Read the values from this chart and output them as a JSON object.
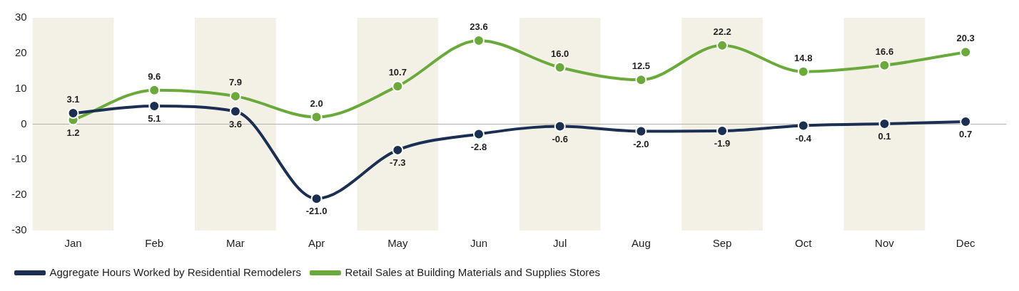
{
  "chart_data": {
    "type": "line",
    "categories": [
      "Jan",
      "Feb",
      "Mar",
      "Apr",
      "May",
      "Jun",
      "Jul",
      "Aug",
      "Sep",
      "Oct",
      "Nov",
      "Dec"
    ],
    "series": [
      {
        "name": "Aggregate Hours Worked by Residential Remodelers",
        "color": "#1b2f52",
        "values": [
          3.1,
          5.1,
          3.6,
          -21.0,
          -7.3,
          -2.8,
          -0.6,
          -2.0,
          -1.9,
          -0.4,
          0.1,
          0.7
        ],
        "value_labels": [
          "3.1",
          "5.1",
          "3.6",
          "-21.0",
          "-7.3",
          "-2.8",
          "-0.6",
          "-2.0",
          "-1.9",
          "-0.4",
          "0.1",
          "0.7"
        ]
      },
      {
        "name": "Retail Sales at Building Materials and Supplies Stores",
        "color": "#6aaa3a",
        "values": [
          1.2,
          9.6,
          7.9,
          2.0,
          10.7,
          23.6,
          16.0,
          12.5,
          22.2,
          14.8,
          16.6,
          20.3
        ],
        "value_labels": [
          "1.2",
          "9.6",
          "7.9",
          "2.0",
          "10.7",
          "23.6",
          "16.0",
          "12.5",
          "22.2",
          "14.8",
          "16.6",
          "20.3"
        ]
      }
    ],
    "ylim": [
      -30,
      30
    ],
    "yticks": [
      -30,
      -20,
      -10,
      0,
      10,
      20,
      30
    ],
    "marker": "circle",
    "line_style": "solid",
    "grid": false,
    "legend": "bottom",
    "ref_lines": [
      {
        "axis": "y",
        "value": 0,
        "color": "#b0b0b0"
      }
    ],
    "bands": [
      {
        "axis": "x",
        "from": "Jan",
        "to": "Jan",
        "color": "#f3f0e6"
      },
      {
        "axis": "x",
        "from": "Mar",
        "to": "Mar",
        "color": "#f3f0e6"
      },
      {
        "axis": "x",
        "from": "May",
        "to": "May",
        "color": "#f3f0e6"
      },
      {
        "axis": "x",
        "from": "Jul",
        "to": "Jul",
        "color": "#f3f0e6"
      },
      {
        "axis": "x",
        "from": "Sep",
        "to": "Sep",
        "color": "#f3f0e6"
      },
      {
        "axis": "x",
        "from": "Nov",
        "to": "Nov",
        "color": "#f3f0e6"
      }
    ]
  }
}
